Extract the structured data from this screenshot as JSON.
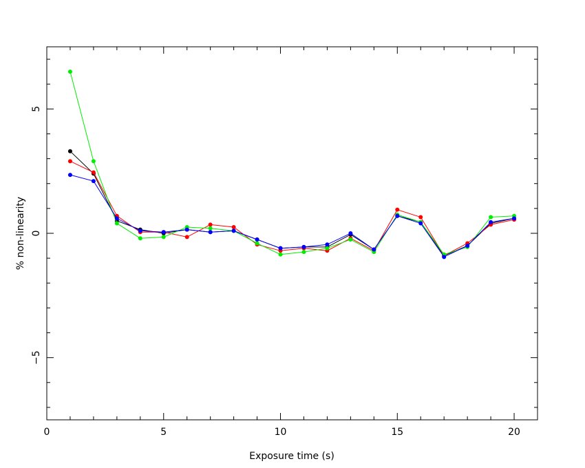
{
  "chart_data": {
    "type": "line",
    "title": "",
    "xlabel": "Exposure time (s)",
    "ylabel": "% non-linearity",
    "xlim": [
      0,
      21
    ],
    "ylim": [
      -7.5,
      7.5
    ],
    "xticks": [
      0,
      5,
      10,
      15,
      20
    ],
    "xtick_labels": [
      "0",
      "5",
      "10",
      "15",
      "20"
    ],
    "yticks": [
      -5,
      0,
      5
    ],
    "ytick_labels": [
      "−5",
      "0",
      "5"
    ],
    "grid": false,
    "x": [
      1,
      2,
      3,
      4,
      5,
      6,
      7,
      8,
      9,
      10,
      11,
      12,
      13,
      14,
      15,
      16,
      17,
      18,
      19,
      20
    ],
    "series": [
      {
        "color": "#000000",
        "values": [
          3.3,
          2.4,
          0.5,
          0.15,
          0.0,
          0.15,
          0.05,
          0.1,
          -0.25,
          -0.6,
          -0.55,
          -0.55,
          -0.05,
          -0.65,
          0.7,
          0.45,
          -0.9,
          -0.5,
          0.4,
          0.6
        ]
      },
      {
        "color": "#ff0000",
        "values": [
          2.9,
          2.45,
          0.7,
          0.05,
          0.05,
          -0.15,
          0.35,
          0.25,
          -0.45,
          -0.7,
          -0.6,
          -0.7,
          -0.2,
          -0.7,
          0.95,
          0.65,
          -0.9,
          -0.4,
          0.35,
          0.55
        ]
      },
      {
        "color": "#00ee00",
        "values": [
          6.5,
          2.9,
          0.4,
          -0.2,
          -0.15,
          0.25,
          0.2,
          0.1,
          -0.4,
          -0.85,
          -0.75,
          -0.6,
          -0.25,
          -0.75,
          0.75,
          0.45,
          -0.85,
          -0.55,
          0.65,
          0.7
        ]
      },
      {
        "color": "#0000ff",
        "values": [
          2.35,
          2.1,
          0.6,
          0.1,
          0.05,
          0.15,
          0.05,
          0.1,
          -0.25,
          -0.6,
          -0.55,
          -0.45,
          0.0,
          -0.65,
          0.7,
          0.4,
          -0.95,
          -0.5,
          0.45,
          0.6
        ]
      }
    ]
  }
}
